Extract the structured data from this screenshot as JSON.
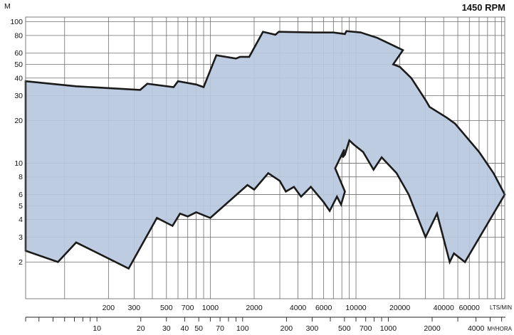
{
  "chart_data": {
    "type": "area",
    "title": "1450 RPM",
    "ylabel": "M",
    "y_scale": "log",
    "ylim": [
      1.1,
      108
    ],
    "y_ticks": [
      2,
      3,
      4,
      5,
      6,
      8,
      10,
      20,
      30,
      40,
      50,
      60,
      80,
      100
    ],
    "y_tick_labels": [
      "2",
      "3",
      "4",
      "5",
      "6",
      "8",
      "10",
      "20",
      "30",
      "40",
      "50",
      "60",
      "80",
      "100"
    ],
    "x_scale": "log",
    "x_primary": {
      "unit": "LTS/MIN",
      "range": [
        54,
        105000
      ],
      "tick_labels": [
        {
          "value": 200,
          "label": "200"
        },
        {
          "value": 300,
          "label": "300"
        },
        {
          "value": 500,
          "label": "500"
        },
        {
          "value": 700,
          "label": "700"
        },
        {
          "value": 1000,
          "label": "1000"
        },
        {
          "value": 2000,
          "label": "2000"
        },
        {
          "value": 4000,
          "label": "4000"
        },
        {
          "value": 6000,
          "label": "6000"
        },
        {
          "value": 10000,
          "label": "10000"
        },
        {
          "value": 20000,
          "label": "20000"
        },
        {
          "value": 40000,
          "label": "40000"
        },
        {
          "value": 60000,
          "label": "60000"
        }
      ],
      "grid_values": [
        100,
        200,
        300,
        400,
        500,
        600,
        700,
        800,
        900,
        1000,
        2000,
        3000,
        4000,
        5000,
        6000,
        7000,
        8000,
        9000,
        10000,
        20000,
        30000,
        40000,
        50000,
        60000,
        70000,
        80000,
        90000,
        100000
      ]
    },
    "x_secondary": {
      "unit": "M³/HORA",
      "tick_labels": [
        {
          "value": 10,
          "label": "10"
        },
        {
          "value": 20,
          "label": "20"
        },
        {
          "value": 30,
          "label": "30"
        },
        {
          "value": 40,
          "label": "40"
        },
        {
          "value": 50,
          "label": "50"
        },
        {
          "value": 70,
          "label": "70"
        },
        {
          "value": 100,
          "label": "100"
        },
        {
          "value": 200,
          "label": "200"
        },
        {
          "value": 300,
          "label": "300"
        },
        {
          "value": 500,
          "label": "500"
        },
        {
          "value": 700,
          "label": "700"
        },
        {
          "value": 1000,
          "label": "1000"
        },
        {
          "value": 2000,
          "label": "2000"
        },
        {
          "value": 4000,
          "label": "4000"
        }
      ],
      "tick_values": [
        3.24,
        4,
        5,
        6,
        7,
        8,
        9,
        10,
        20,
        30,
        40,
        50,
        60,
        70,
        80,
        90,
        100,
        200,
        300,
        400,
        500,
        600,
        700,
        800,
        900,
        1000,
        2000,
        3000,
        4000,
        5000,
        6000
      ]
    },
    "coverage_polygon": [
      [
        54,
        38
      ],
      [
        120,
        35
      ],
      [
        330,
        33
      ],
      [
        370,
        36.5
      ],
      [
        560,
        34.5
      ],
      [
        600,
        38
      ],
      [
        800,
        36
      ],
      [
        900,
        34.5
      ],
      [
        1100,
        58
      ],
      [
        1500,
        55
      ],
      [
        1600,
        56.5
      ],
      [
        1850,
        56.5
      ],
      [
        2300,
        85
      ],
      [
        2800,
        81
      ],
      [
        2950,
        85
      ],
      [
        5200,
        84
      ],
      [
        7000,
        84
      ],
      [
        8400,
        82
      ],
      [
        8600,
        86
      ],
      [
        10800,
        84
      ],
      [
        14000,
        77
      ],
      [
        17500,
        69
      ],
      [
        21000,
        63
      ],
      [
        18000,
        50
      ],
      [
        20000,
        48
      ],
      [
        24000,
        40
      ],
      [
        30000,
        28
      ],
      [
        32000,
        25
      ],
      [
        42000,
        21
      ],
      [
        48000,
        19
      ],
      [
        70000,
        12
      ],
      [
        88000,
        8.5
      ],
      [
        105000,
        6
      ],
      [
        56000,
        2
      ],
      [
        47000,
        2.3
      ],
      [
        44000,
        2
      ],
      [
        36000,
        4.4
      ],
      [
        30000,
        3
      ],
      [
        23000,
        6
      ],
      [
        19000,
        8.5
      ],
      [
        15000,
        11
      ],
      [
        13200,
        9
      ],
      [
        11200,
        12
      ],
      [
        9700,
        13.5
      ],
      [
        9000,
        14.5
      ],
      [
        8400,
        11.5
      ],
      [
        8100,
        11
      ],
      [
        8300,
        12.5
      ],
      [
        7200,
        9.2
      ],
      [
        8400,
        6.3
      ],
      [
        7900,
        5.1
      ],
      [
        7400,
        5.8
      ],
      [
        6600,
        4.6
      ],
      [
        6000,
        5.3
      ],
      [
        4900,
        6.8
      ],
      [
        4200,
        5.8
      ],
      [
        3750,
        6.8
      ],
      [
        3300,
        6.3
      ],
      [
        3000,
        7.5
      ],
      [
        2500,
        8.5
      ],
      [
        2000,
        6.5
      ],
      [
        1800,
        7
      ],
      [
        1000,
        4.1
      ],
      [
        800,
        4.5
      ],
      [
        700,
        4.2
      ],
      [
        620,
        4.4
      ],
      [
        550,
        3.6
      ],
      [
        430,
        4.1
      ],
      [
        275,
        1.8
      ],
      [
        120,
        2.75
      ],
      [
        90,
        2
      ],
      [
        54,
        2.4
      ]
    ],
    "grid": true,
    "colors": {
      "fill": "#b9c8e0",
      "outline": "#1b1b1b",
      "grid": "#6e6e6e",
      "text": "#111111"
    }
  }
}
